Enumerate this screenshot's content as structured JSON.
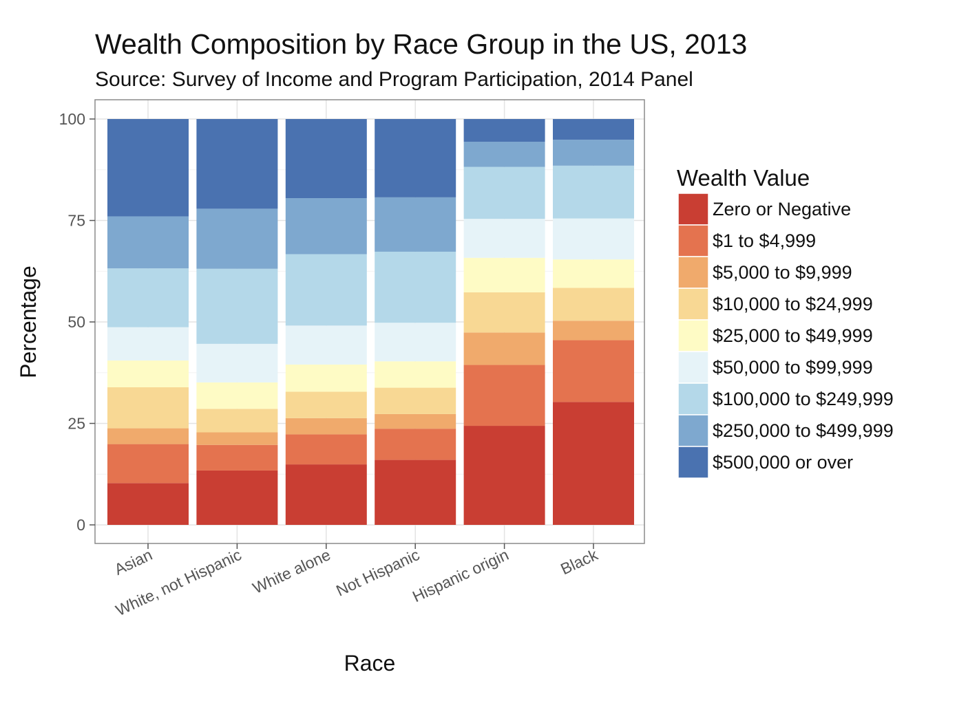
{
  "chart_data": {
    "type": "bar",
    "stacked": true,
    "title": "Wealth Composition by Race Group in the US, 2013",
    "subtitle": "Source: Survey of Income and Program Participation, 2014 Panel",
    "xlabel": "Race",
    "ylabel": "Percentage",
    "ylim": [
      0,
      100
    ],
    "yticks": [
      0,
      25,
      50,
      75,
      100
    ],
    "grid": true,
    "legend_title": "Wealth Value",
    "legend_position": "right",
    "categories": [
      "Asian",
      "White, not Hispanic",
      "White alone",
      "Not Hispanic",
      "Hispanic origin",
      "Black"
    ],
    "series": [
      {
        "name": "Zero or Negative",
        "color": "#c93e33",
        "values": [
          10.3,
          13.4,
          14.9,
          16.0,
          24.4,
          30.3
        ]
      },
      {
        "name": "$1 to $4,999",
        "color": "#e4734f",
        "values": [
          9.6,
          6.3,
          7.4,
          7.7,
          15.0,
          15.2
        ]
      },
      {
        "name": "$5,000 to $9,999",
        "color": "#f0aa6c",
        "values": [
          3.9,
          3.1,
          4.0,
          3.6,
          8.0,
          4.8
        ]
      },
      {
        "name": "$10,000 to $24,999",
        "color": "#f8d894",
        "values": [
          10.1,
          5.8,
          6.5,
          6.5,
          9.9,
          8.1
        ]
      },
      {
        "name": "$25,000 to $49,999",
        "color": "#fefbc5",
        "values": [
          6.6,
          6.5,
          6.7,
          6.5,
          8.5,
          7.0
        ]
      },
      {
        "name": "$50,000 to $99,999",
        "color": "#e6f3f8",
        "values": [
          8.2,
          9.5,
          9.6,
          9.5,
          9.6,
          10.1
        ]
      },
      {
        "name": "$100,000 to $249,999",
        "color": "#b4d8e9",
        "values": [
          14.5,
          18.5,
          17.6,
          17.5,
          12.8,
          13.0
        ]
      },
      {
        "name": "$250,000 to $499,999",
        "color": "#7ea8cf",
        "values": [
          12.8,
          14.8,
          13.8,
          13.4,
          6.2,
          6.4
        ]
      },
      {
        "name": "$500,000 or over",
        "color": "#4a72b0",
        "values": [
          24.0,
          22.1,
          19.5,
          19.3,
          5.6,
          5.1
        ]
      }
    ]
  }
}
